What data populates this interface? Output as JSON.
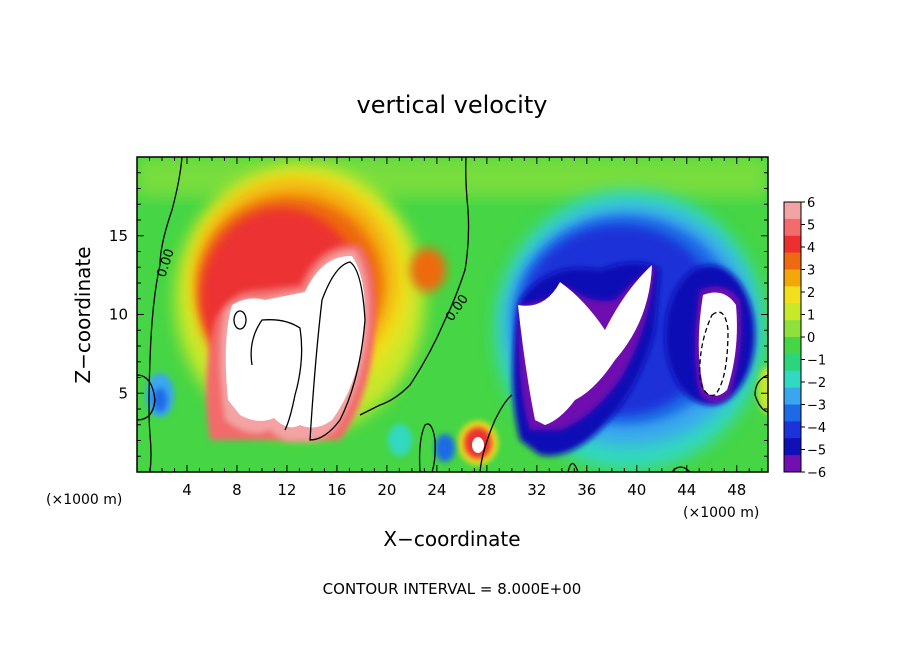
{
  "chart_data": {
    "type": "heatmap",
    "title": "vertical velocity",
    "xlabel": "X−coordinate",
    "ylabel": "Z−coordinate",
    "x_unit_left": "(×1000 m)",
    "x_unit_right": "(×1000 m)",
    "footer": "CONTOUR INTERVAL = 8.000E+00",
    "xlim": [
      0,
      50.5
    ],
    "ylim": [
      0,
      20
    ],
    "x_ticks": [
      "4",
      "8",
      "12",
      "16",
      "20",
      "24",
      "28",
      "32",
      "36",
      "40",
      "44",
      "48"
    ],
    "y_ticks": [
      "5",
      "10",
      "15"
    ],
    "contour_labels": [
      "0.00",
      "0.00"
    ],
    "colorbar": {
      "levels": [
        "6",
        "5",
        "4",
        "3",
        "2",
        "1",
        "0",
        "−1",
        "−2",
        "−3",
        "−4",
        "−5",
        "−6"
      ],
      "colors": [
        "#f3a3a3",
        "#f36b6b",
        "#ec3030",
        "#ee6a10",
        "#f4a70a",
        "#f2e01e",
        "#c8e82a",
        "#8ee13a",
        "#45d545",
        "#2bd57a",
        "#30d9c0",
        "#3aa6ef",
        "#1e6ae6",
        "#1b33d8",
        "#1010b6",
        "#7010b0"
      ]
    },
    "features": [
      {
        "name": "updraft core",
        "x_range": [
          6,
          24
        ],
        "z_range": [
          1,
          18
        ],
        "sign": "positive",
        "max_region": "above 6"
      },
      {
        "name": "downdraft region",
        "x_range": [
          30,
          50
        ],
        "z_range": [
          1,
          16
        ],
        "sign": "negative",
        "max_region": "below −6"
      },
      {
        "name": "small updraft cell",
        "x_center": 27,
        "z_center": 1.8,
        "sign": "positive"
      }
    ],
    "grid": false,
    "legend": "colorbar right"
  }
}
